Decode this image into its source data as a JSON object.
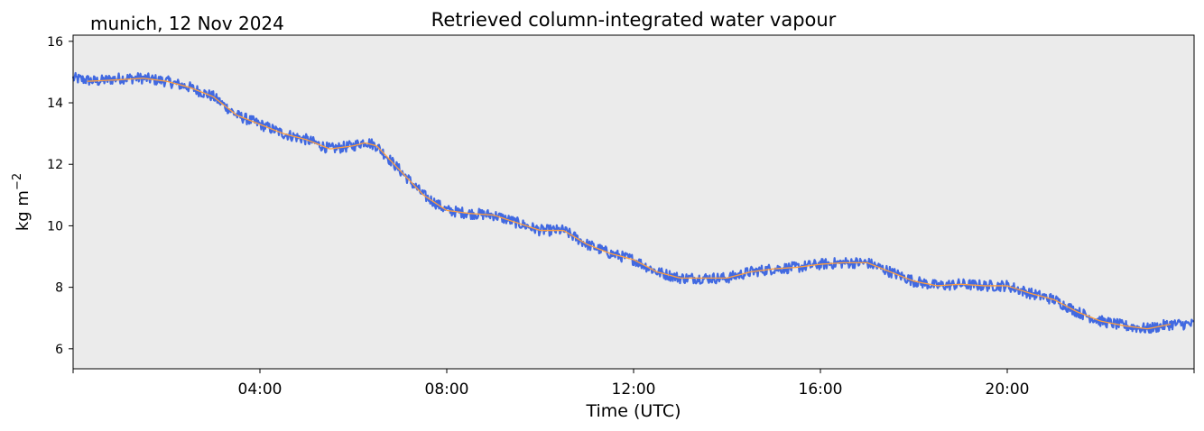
{
  "chart_data": {
    "type": "line",
    "title": "Retrieved column-integrated water vapour",
    "subtitle": "munich, 12 Nov 2024",
    "xlabel": "Time (UTC)",
    "ylabel": "kg m⁻²",
    "ylabel_base": "kg m",
    "ylabel_sup": "−2",
    "xlim": [
      "00:00",
      "24:00"
    ],
    "ylim": [
      5.35,
      16.2
    ],
    "x_ticks": [
      "04:00",
      "08:00",
      "12:00",
      "16:00",
      "20:00"
    ],
    "y_ticks": [
      6,
      8,
      10,
      12,
      14,
      16
    ],
    "grid": false,
    "background": "#ebebeb",
    "series": [
      {
        "role": "raw-retrieval",
        "color": "#4169e1",
        "noise_band": 0.18,
        "x_hours": [
          0.0,
          0.5,
          1.0,
          1.5,
          2.0,
          2.5,
          3.0,
          3.5,
          4.0,
          4.5,
          5.0,
          5.5,
          6.0,
          6.25,
          6.5,
          7.0,
          7.5,
          8.0,
          8.5,
          9.0,
          9.5,
          10.0,
          10.5,
          11.0,
          11.5,
          12.0,
          12.5,
          13.0,
          13.5,
          14.0,
          14.5,
          15.0,
          15.5,
          16.0,
          16.5,
          17.0,
          17.5,
          18.0,
          18.5,
          19.0,
          19.5,
          20.0,
          20.5,
          21.0,
          21.5,
          22.0,
          22.5,
          23.0,
          23.5,
          24.0
        ],
        "values": [
          14.8,
          14.7,
          14.8,
          14.8,
          14.7,
          14.5,
          14.2,
          13.6,
          13.3,
          13.0,
          12.8,
          12.5,
          12.6,
          12.75,
          12.6,
          11.8,
          11.0,
          10.5,
          10.4,
          10.35,
          10.1,
          9.85,
          9.85,
          9.4,
          9.1,
          8.9,
          8.5,
          8.3,
          8.3,
          8.3,
          8.5,
          8.6,
          8.65,
          8.75,
          8.8,
          8.8,
          8.5,
          8.2,
          8.05,
          8.1,
          8.05,
          8.05,
          7.8,
          7.6,
          7.2,
          6.9,
          6.75,
          6.65,
          6.8,
          6.8
        ]
      },
      {
        "role": "smoothed",
        "color": "#ff9e3d",
        "x_hours": [
          0.3,
          1.0,
          1.5,
          2.0,
          2.5,
          3.0,
          3.5,
          4.0,
          4.5,
          5.0,
          5.5,
          6.0,
          6.25,
          6.5,
          7.0,
          7.5,
          8.0,
          8.5,
          9.0,
          9.5,
          10.0,
          10.5,
          11.0,
          11.5,
          12.0,
          12.5,
          13.0,
          13.5,
          14.0,
          14.5,
          15.0,
          15.5,
          16.0,
          16.5,
          17.0,
          17.5,
          18.0,
          18.5,
          19.0,
          19.5,
          20.0,
          20.5,
          21.0,
          21.5,
          22.0,
          22.5,
          23.0,
          23.5
        ],
        "values": [
          14.7,
          14.75,
          14.8,
          14.7,
          14.5,
          14.2,
          13.6,
          13.3,
          13.0,
          12.8,
          12.5,
          12.6,
          12.7,
          12.6,
          11.8,
          11.0,
          10.5,
          10.4,
          10.35,
          10.1,
          9.85,
          9.85,
          9.4,
          9.1,
          8.9,
          8.5,
          8.3,
          8.3,
          8.3,
          8.5,
          8.6,
          8.65,
          8.75,
          8.8,
          8.8,
          8.5,
          8.2,
          8.05,
          8.1,
          8.05,
          8.05,
          7.8,
          7.6,
          7.2,
          6.9,
          6.75,
          6.65,
          6.8
        ]
      }
    ]
  }
}
